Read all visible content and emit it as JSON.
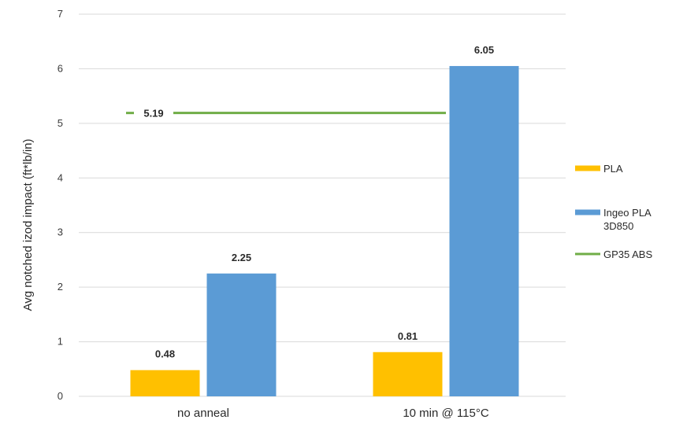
{
  "chart_data": {
    "type": "bar",
    "categories": [
      "no anneal",
      "10 min @ 115°C"
    ],
    "series": [
      {
        "name": "PLA",
        "values": [
          0.48,
          0.81
        ],
        "color": "#FFC000"
      },
      {
        "name": "Ingeo PLA 3D850",
        "values": [
          2.25,
          6.05
        ],
        "color": "#5B9BD5"
      }
    ],
    "reference_line": {
      "name": "GP35 ABS",
      "value": 5.19,
      "label": "5.19",
      "color": "#70AD47"
    },
    "ylabel": "Avg notched izod impact (ft*lb/in)",
    "ylim": [
      0,
      7
    ],
    "yticks": [
      "0",
      "1",
      "2",
      "3",
      "4",
      "5",
      "6",
      "7"
    ],
    "grid": true,
    "legend_position": "right",
    "legend": [
      {
        "name": "PLA",
        "lines": [
          "PLA"
        ],
        "kind": "bar",
        "color": "#FFC000"
      },
      {
        "name": "Ingeo PLA 3D850",
        "lines": [
          "Ingeo PLA",
          "3D850"
        ],
        "kind": "bar",
        "color": "#5B9BD5"
      },
      {
        "name": "GP35 ABS",
        "lines": [
          "GP35 ABS"
        ],
        "kind": "line",
        "color": "#70AD47"
      }
    ]
  }
}
